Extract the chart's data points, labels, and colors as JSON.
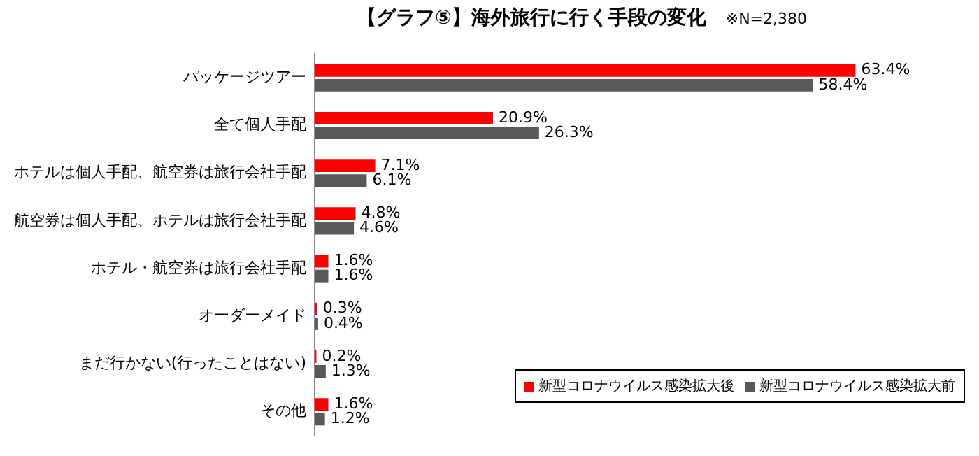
{
  "chart_data": {
    "type": "bar",
    "orientation": "horizontal",
    "title": "【グラフ⑤】海外旅行に行く手段の変化",
    "subtitle": "※N=2,380",
    "categories": [
      "パッケージツアー",
      "全て個人手配",
      "ホテルは個人手配、航空券は旅行会社手配",
      "航空券は個人手配、ホテルは旅行会社手配",
      "ホテル・航空券は旅行会社手配",
      "オーダーメイド",
      "まだ行かない(行ったことはない)",
      "その他"
    ],
    "series": [
      {
        "name": "新型コロナウイルス感染拡大後",
        "color": "#ff0000",
        "values": [
          63.4,
          20.9,
          7.1,
          4.8,
          1.6,
          0.3,
          0.2,
          1.6
        ],
        "value_labels": [
          "63.4%",
          "20.9%",
          "7.1%",
          "4.8%",
          "1.6%",
          "0.3%",
          "0.2%",
          "1.6%"
        ]
      },
      {
        "name": "新型コロナウイルス感染拡大前",
        "color": "#595959",
        "values": [
          58.4,
          26.3,
          6.1,
          4.6,
          1.6,
          0.4,
          1.3,
          1.2
        ],
        "value_labels": [
          "58.4%",
          "26.3%",
          "6.1%",
          "4.6%",
          "1.6%",
          "0.4%",
          "1.3%",
          "1.2%"
        ]
      }
    ],
    "legend": "bottom right"
  }
}
